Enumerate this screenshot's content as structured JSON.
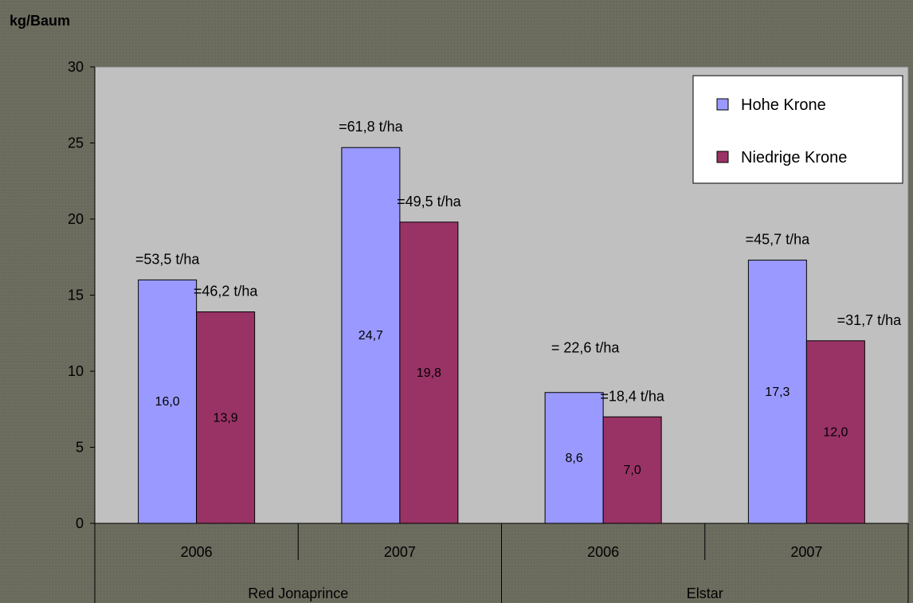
{
  "chart_data": {
    "type": "bar",
    "y_axis_title": "kg/Baum",
    "ylim": [
      0,
      30
    ],
    "y_ticks": [
      0,
      5,
      10,
      15,
      20,
      25,
      30
    ],
    "grid": false,
    "legend_position": "top-right",
    "categories": [
      "2006",
      "2007",
      "2006",
      "2007"
    ],
    "groups": [
      {
        "label": "Red Jonaprince",
        "span": [
          0,
          1
        ]
      },
      {
        "label": "Elstar",
        "span": [
          2,
          3
        ]
      }
    ],
    "series": [
      {
        "name": "Hohe Krone",
        "color": "#9999ff",
        "values": [
          16.0,
          24.7,
          8.6,
          17.3
        ],
        "value_labels": [
          "16,0",
          "24,7",
          "8,6",
          "17,3"
        ],
        "annotations": [
          "=53,5 t/ha",
          "=61,8 t/ha",
          "= 22,6 t/ha",
          "=45,7 t/ha"
        ]
      },
      {
        "name": "Niedrige Krone",
        "color": "#993366",
        "values": [
          13.9,
          19.8,
          7.0,
          12.0
        ],
        "value_labels": [
          "13,9",
          "19,8",
          "7,0",
          "12,0"
        ],
        "annotations": [
          "=46,2 t/ha",
          "=49,5 t/ha",
          "=18,4 t/ha",
          "=31,7 t/ha"
        ]
      }
    ],
    "colors": {
      "page_background": "#6b6b5e",
      "plot_background": "#c0c0c0"
    }
  }
}
